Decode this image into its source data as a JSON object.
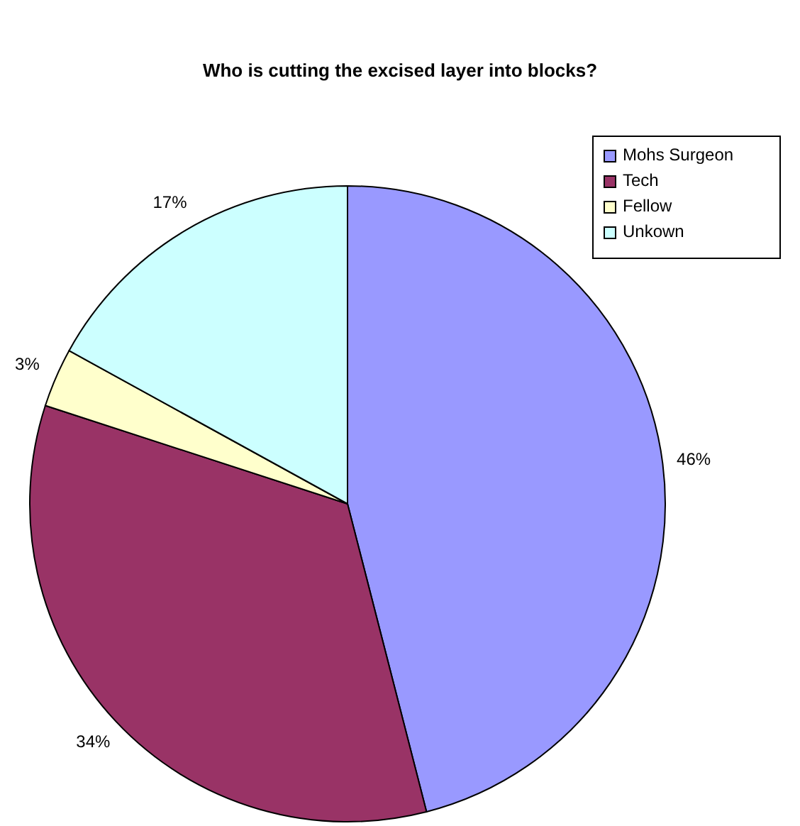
{
  "chart_data": {
    "type": "pie",
    "title": "Who is cutting the excised layer into blocks?",
    "categories": [
      "Mohs Surgeon",
      "Tech",
      "Fellow",
      "Unkown"
    ],
    "values": [
      46,
      34,
      3,
      17
    ],
    "colors": [
      "#9999ff",
      "#993366",
      "#ffffcc",
      "#ccffff"
    ],
    "value_labels": [
      "46%",
      "34%",
      "3%",
      "17%"
    ],
    "legend": "top right"
  }
}
